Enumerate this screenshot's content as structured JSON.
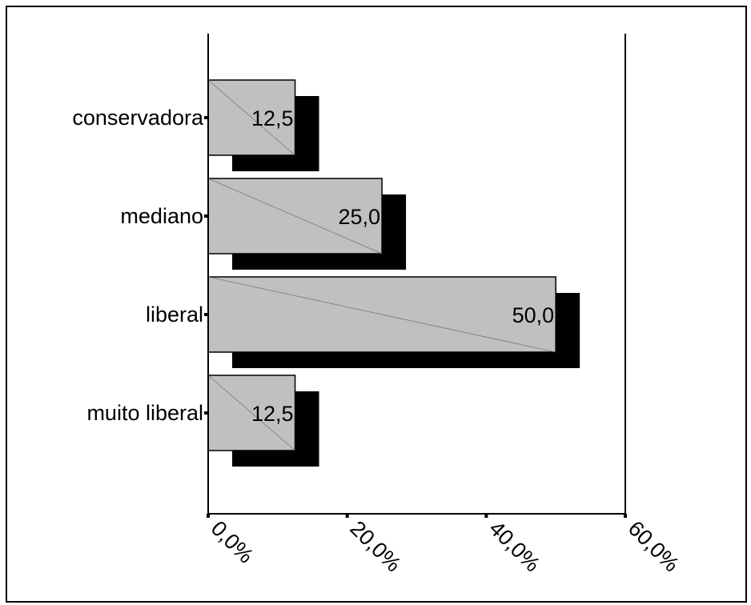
{
  "chart_data": {
    "type": "bar",
    "orientation": "horizontal",
    "categories": [
      "conservadora",
      "mediano",
      "liberal",
      "muito liberal"
    ],
    "values": [
      12.5,
      25.0,
      50.0,
      12.5
    ],
    "value_labels": [
      "12,5",
      "25,0",
      "50,0",
      "12,5"
    ],
    "x_ticks": [
      "0,0%",
      "20,0%",
      "40,0%",
      "60,0%"
    ],
    "xlim": [
      0,
      60
    ],
    "grid": false,
    "colors": {
      "bar": "#c0c0c0",
      "shadow": "#000000"
    }
  }
}
